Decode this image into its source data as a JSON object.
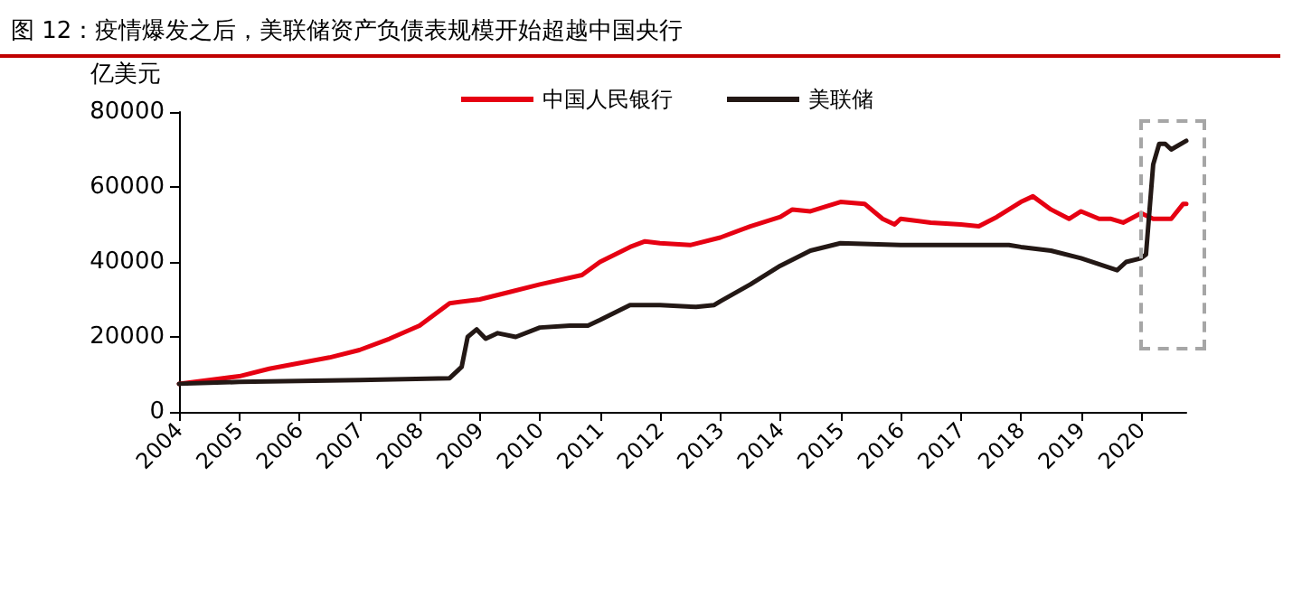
{
  "chart_data": {
    "type": "line",
    "title": "图 12：疫情爆发之后，美联储资产负债表规模开始超越中国央行",
    "ylabel": "亿美元",
    "xlim": [
      2004,
      2020.75
    ],
    "xticks": [
      2004,
      2005,
      2006,
      2007,
      2008,
      2009,
      2010,
      2011,
      2012,
      2013,
      2014,
      2015,
      2016,
      2017,
      2018,
      2019,
      2020
    ],
    "ylim": [
      0,
      80000
    ],
    "yticks": [
      0,
      20000,
      40000,
      60000,
      80000
    ],
    "grid": false,
    "legend": "top",
    "marker": "none",
    "line_style": "solid",
    "series": [
      {
        "name": "中国人民银行",
        "color": "#e60012",
        "x": [
          2004,
          2004.5,
          2005,
          2005.5,
          2006,
          2006.5,
          2007,
          2007.5,
          2008,
          2008.5,
          2009,
          2009.5,
          2010,
          2010.7,
          2011,
          2011.5,
          2011.75,
          2012,
          2012.5,
          2013,
          2013.5,
          2014,
          2014.2,
          2014.5,
          2015,
          2015.4,
          2015.7,
          2015.9,
          2016,
          2016.5,
          2017,
          2017.3,
          2017.6,
          2018,
          2018.2,
          2018.5,
          2018.8,
          2019,
          2019.3,
          2019.5,
          2019.7,
          2020,
          2020.2,
          2020.5,
          2020.7,
          2020.75
        ],
        "values": [
          7500,
          8500,
          9500,
          11500,
          13000,
          14500,
          16500,
          19500,
          23000,
          29000,
          30000,
          32000,
          34000,
          36500,
          40000,
          44000,
          45500,
          45000,
          44500,
          46500,
          49500,
          52000,
          54000,
          53500,
          56000,
          55500,
          51500,
          50000,
          51500,
          50500,
          50000,
          49500,
          52000,
          56000,
          57500,
          54000,
          51500,
          53500,
          51500,
          51500,
          50500,
          53000,
          51500,
          51500,
          55500,
          55500
        ]
      },
      {
        "name": "美联储",
        "color": "#231815",
        "x": [
          2004,
          2005,
          2007,
          2008.5,
          2008.7,
          2008.8,
          2008.95,
          2009.1,
          2009.3,
          2009.6,
          2010,
          2010.5,
          2010.8,
          2011,
          2011.5,
          2012,
          2012.6,
          2012.9,
          2013,
          2013.5,
          2014,
          2014.5,
          2015,
          2016,
          2017,
          2017.8,
          2018,
          2018.5,
          2019,
          2019.6,
          2019.75,
          2020,
          2020.08,
          2020.2,
          2020.3,
          2020.4,
          2020.5,
          2020.75
        ],
        "values": [
          7500,
          8000,
          8500,
          9000,
          12000,
          20000,
          22000,
          19500,
          21000,
          20000,
          22500,
          23000,
          23000,
          24500,
          28500,
          28500,
          28000,
          28500,
          29500,
          34000,
          39000,
          43000,
          45000,
          44500,
          44500,
          44500,
          44000,
          43000,
          41000,
          37800,
          40000,
          41000,
          42000,
          66000,
          71500,
          71500,
          70000,
          72300
        ]
      }
    ]
  }
}
